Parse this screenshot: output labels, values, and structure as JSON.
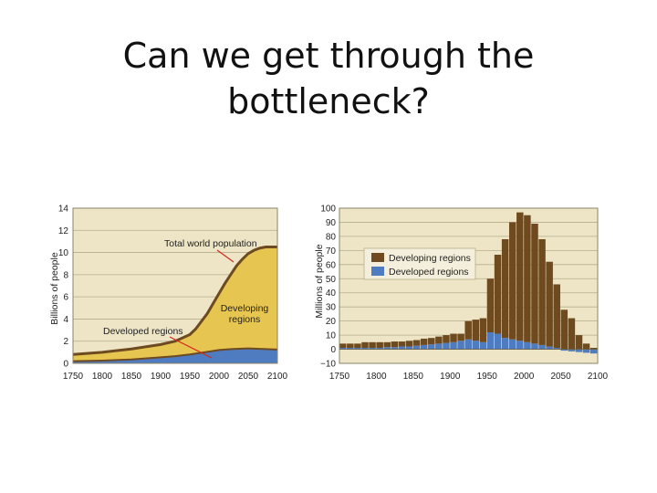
{
  "slide": {
    "title_line1": "Can we get through the",
    "title_line2": "bottleneck?"
  },
  "colors": {
    "panel_bg": "#ede5c6",
    "grid": "#b7ad8c",
    "developed": "#4f7bc0",
    "developing_fill": "#e7c551",
    "total_line": "#6e4a21",
    "developing_bar": "#6f4a1e",
    "arrow": "#d22a1e"
  },
  "chart_data": [
    {
      "type": "area",
      "ylabel": "Billions of people",
      "xlim": [
        1750,
        2100
      ],
      "ylim": [
        0,
        14
      ],
      "x_ticks": [
        "1750",
        "1800",
        "1850",
        "1900",
        "1950",
        "2000",
        "2050",
        "2100"
      ],
      "y_ticks": [
        "0",
        "2",
        "4",
        "6",
        "8",
        "10",
        "12",
        "14"
      ],
      "grid": true,
      "series": [
        {
          "name": "Developed regions",
          "x": [
            1750,
            1800,
            1850,
            1900,
            1925,
            1950,
            1975,
            2000,
            2025,
            2050,
            2075,
            2100
          ],
          "values": [
            0.2,
            0.25,
            0.35,
            0.55,
            0.65,
            0.8,
            1.0,
            1.2,
            1.3,
            1.35,
            1.3,
            1.25
          ]
        },
        {
          "name": "Total world population",
          "x": [
            1750,
            1800,
            1850,
            1900,
            1925,
            1950,
            1960,
            1970,
            1980,
            1990,
            2000,
            2010,
            2020,
            2030,
            2040,
            2050,
            2060,
            2070,
            2080,
            2090,
            2100
          ],
          "values": [
            0.8,
            1.0,
            1.3,
            1.7,
            2.0,
            2.6,
            3.1,
            3.8,
            4.5,
            5.4,
            6.3,
            7.2,
            8.0,
            8.8,
            9.4,
            9.9,
            10.2,
            10.4,
            10.5,
            10.5,
            10.5
          ]
        }
      ],
      "annotations": [
        "Total world population",
        "Developing regions",
        "Developed regions"
      ]
    },
    {
      "type": "bar",
      "ylabel": "Millions of people",
      "xlim": [
        1750,
        2100
      ],
      "ylim": [
        -10,
        100
      ],
      "x_ticks": [
        "1750",
        "1800",
        "1850",
        "1900",
        "1950",
        "2000",
        "2050",
        "2100"
      ],
      "y_ticks": [
        "−10",
        "0",
        "10",
        "20",
        "30",
        "40",
        "50",
        "60",
        "70",
        "80",
        "90",
        "100"
      ],
      "grid": true,
      "legend": "top-left",
      "x": [
        1750,
        1760,
        1770,
        1780,
        1790,
        1800,
        1810,
        1820,
        1830,
        1840,
        1850,
        1860,
        1870,
        1880,
        1890,
        1900,
        1910,
        1920,
        1930,
        1940,
        1950,
        1960,
        1970,
        1980,
        1990,
        2000,
        2010,
        2020,
        2030,
        2040,
        2050,
        2060,
        2070,
        2080,
        2090
      ],
      "series": [
        {
          "name": "Developed regions",
          "values": [
            1,
            1,
            1,
            1,
            1,
            1,
            1.5,
            1.5,
            2,
            2,
            2.5,
            3,
            3.5,
            4,
            4.5,
            5,
            6,
            7,
            6,
            5,
            12,
            11,
            8,
            7,
            6,
            5,
            4,
            3,
            2,
            1,
            -1,
            -1.5,
            -2,
            -2.5,
            -3
          ]
        },
        {
          "name": "Developing regions",
          "values": [
            3,
            3,
            3,
            4,
            4,
            4,
            3.5,
            4,
            3.5,
            4,
            4,
            4.5,
            4.5,
            5,
            5.5,
            6,
            5,
            13,
            15,
            17,
            38,
            56,
            70,
            83,
            91,
            90,
            85,
            75,
            60,
            45,
            28,
            22,
            10,
            4,
            1
          ]
        }
      ]
    }
  ]
}
